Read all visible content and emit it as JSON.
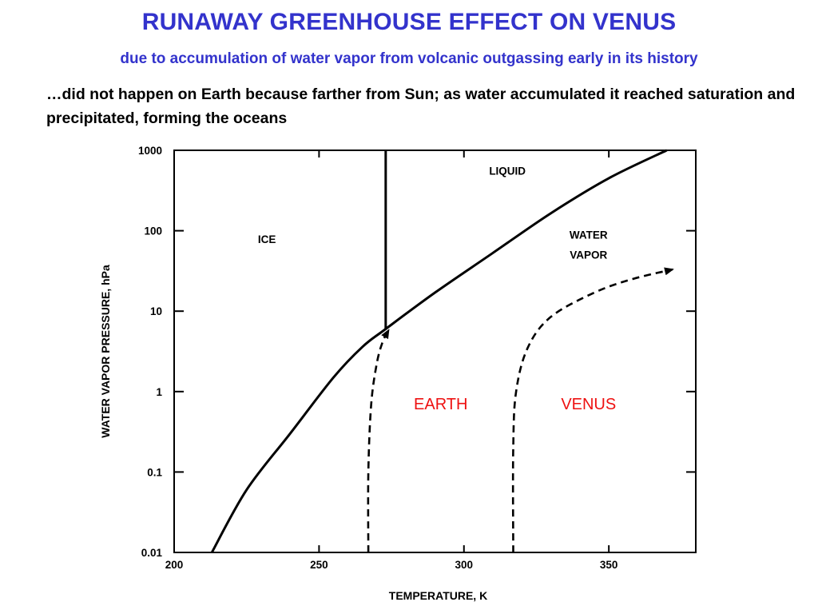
{
  "header": {
    "title": "RUNAWAY GREENHOUSE EFFECT ON VENUS",
    "subtitle": "due to accumulation of water vapor from volcanic outgassing early in its history",
    "note": "…did not happen on Earth because farther from Sun; as water accumulated it reached saturation and precipitated, forming the oceans"
  },
  "colors": {
    "title": "#3333cc",
    "subtitle": "#3333cc",
    "planet_labels": "#ee1111",
    "lines": "#000000"
  },
  "chart_data": {
    "type": "line",
    "xlabel": "TEMPERATURE, K",
    "ylabel": "WATER VAPOR PRESSURE, hPa",
    "xlim": [
      200,
      380
    ],
    "ylim": [
      0.01,
      1000
    ],
    "y_scale": "log",
    "x_ticks": [
      200,
      250,
      300,
      350
    ],
    "x_tick_labels": [
      "200",
      "250",
      "300",
      "350"
    ],
    "y_ticks": [
      0.01,
      0.1,
      1,
      10,
      100,
      1000
    ],
    "y_tick_labels": [
      "0.01",
      "0.1",
      "1",
      "10",
      "100",
      "1000"
    ],
    "grid": false,
    "series": [
      {
        "style": "solid",
        "x": [
          213,
          225,
          240,
          255,
          265,
          273,
          290,
          310,
          330,
          350,
          370
        ],
        "y": [
          0.01,
          0.06,
          0.3,
          1.5,
          3.6,
          6,
          17,
          53,
          165,
          450,
          1000
        ]
      },
      {
        "style": "solid",
        "x": [
          273,
          273
        ],
        "y": [
          6,
          1000
        ]
      },
      {
        "name": "EARTH",
        "style": "dashed-arrow",
        "x": [
          267,
          267,
          268,
          270,
          272,
          274
        ],
        "y": [
          0.01,
          0.1,
          0.7,
          2.3,
          4.2,
          5.8
        ]
      },
      {
        "name": "VENUS",
        "style": "dashed-arrow",
        "x": [
          317,
          317,
          318,
          322,
          330,
          345,
          358,
          372
        ],
        "y": [
          0.01,
          0.2,
          1,
          3.5,
          8.5,
          17,
          25,
          33
        ]
      }
    ],
    "regions": [
      {
        "label": "ICE",
        "x": 232,
        "y": 70
      },
      {
        "label": "LIQUID",
        "x": 315,
        "y": 500
      },
      {
        "label": "WATER",
        "x": 343,
        "y": 80
      },
      {
        "label": "VAPOR",
        "x": 343,
        "y": 45
      }
    ],
    "annotations": [
      {
        "label": "EARTH",
        "x": 292,
        "y": 0.6
      },
      {
        "label": "VENUS",
        "x": 343,
        "y": 0.6
      }
    ]
  }
}
